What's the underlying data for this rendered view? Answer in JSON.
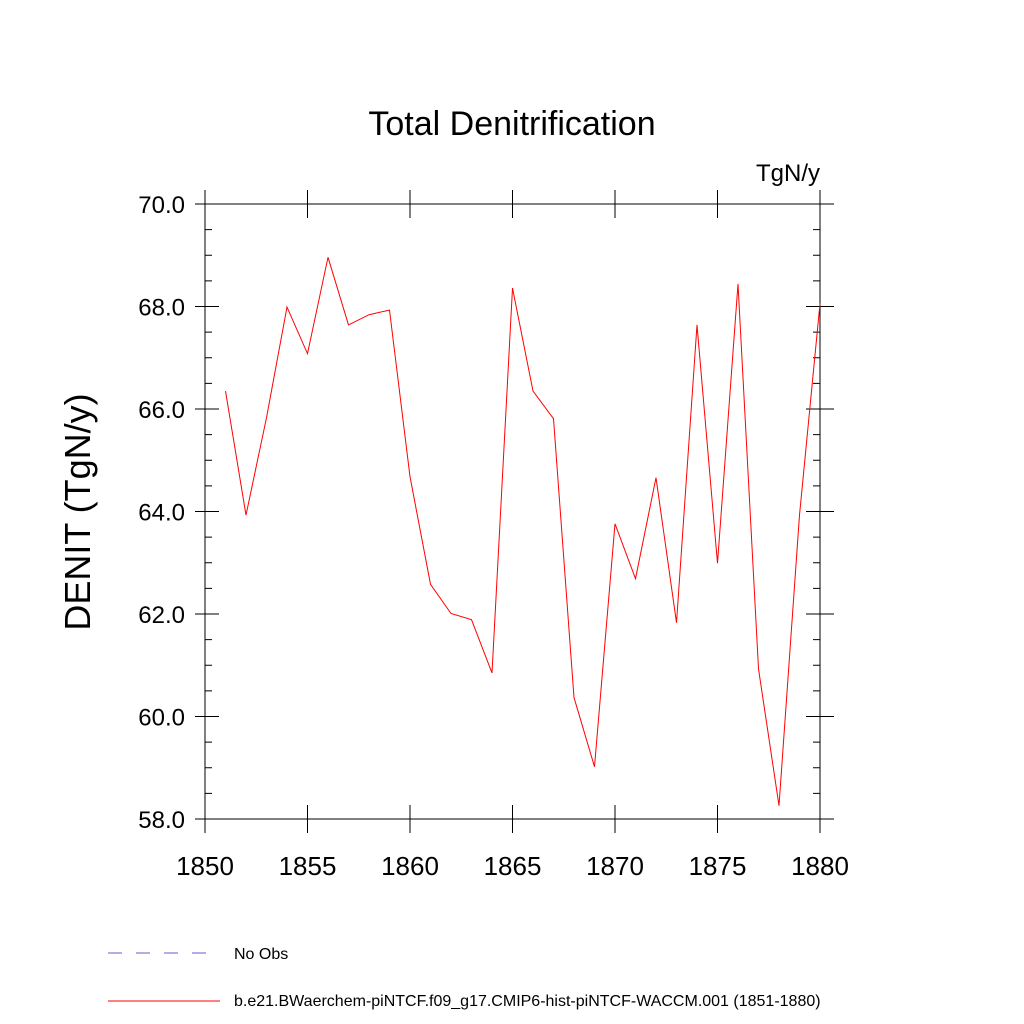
{
  "chart_data": {
    "type": "line",
    "title": "Total Denitrification",
    "units_label": "TgN/y",
    "ylabel": "DENIT  (TgN/y)",
    "xlabel": "",
    "xlim": [
      1850,
      1880
    ],
    "ylim": [
      58.0,
      70.0
    ],
    "x_ticks": [
      1850,
      1855,
      1860,
      1865,
      1870,
      1875,
      1880
    ],
    "x_tick_labels": [
      "1850",
      "1855",
      "1860",
      "1865",
      "1870",
      "1875",
      "1880"
    ],
    "y_ticks": [
      58,
      60,
      62,
      64,
      66,
      68,
      70
    ],
    "y_tick_labels": [
      "58.0",
      "60.0",
      "62.0",
      "64.0",
      "66.0",
      "68.0",
      "70.0"
    ],
    "grid": false,
    "legend_position": "bottom",
    "series": [
      {
        "name": "b.e21.BWaerchem-piNTCF.f09_g17.CMIP6-hist-piNTCF-WACCM.001 (1851-1880)",
        "color": "#ff0000",
        "x": [
          1851,
          1852,
          1853,
          1854,
          1855,
          1856,
          1857,
          1858,
          1859,
          1860,
          1861,
          1862,
          1863,
          1864,
          1865,
          1866,
          1867,
          1868,
          1869,
          1870,
          1871,
          1872,
          1873,
          1874,
          1875,
          1876,
          1877,
          1878,
          1879,
          1880
        ],
        "y": [
          66.35,
          63.93,
          65.83,
          67.99,
          67.08,
          68.96,
          67.64,
          67.84,
          67.93,
          64.68,
          62.58,
          62.01,
          61.89,
          60.85,
          68.36,
          66.35,
          65.81,
          60.37,
          59.02,
          63.76,
          62.69,
          64.66,
          61.83,
          67.64,
          62.99,
          68.44,
          60.93,
          58.26,
          63.93,
          68.06
        ]
      }
    ],
    "legend_entries": [
      {
        "label": "No Obs",
        "style": "dashed",
        "color": "#6a5acd"
      },
      {
        "label": "b.e21.BWaerchem-piNTCF.f09_g17.CMIP6-hist-piNTCF-WACCM.001 (1851-1880)",
        "style": "solid",
        "color": "#ff0000"
      }
    ]
  }
}
